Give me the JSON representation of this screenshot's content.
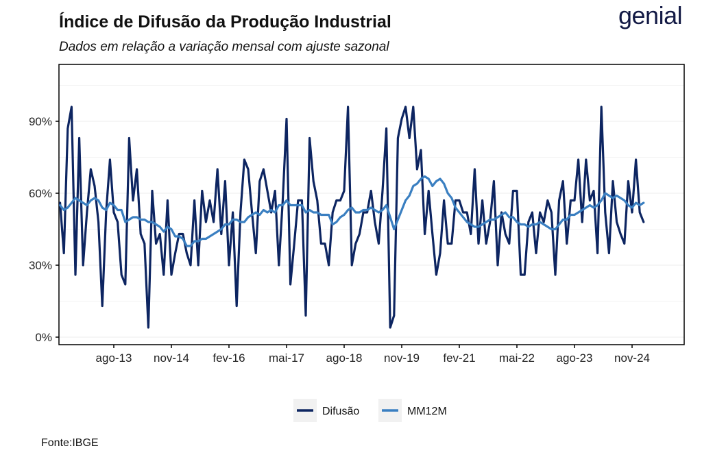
{
  "header": {
    "title": "Índice de Difusão da Produção Industrial",
    "subtitle": "Dados em relação a variação mensal com ajuste sazonal",
    "brand": "genial"
  },
  "footer": {
    "source": "Fonte:IBGE"
  },
  "colors": {
    "difusao": "#0d2561",
    "mm12m": "#3a7fc1",
    "axis": "#000000",
    "grid": "#ececec"
  },
  "chart_data": {
    "type": "line",
    "title": "Índice de Difusão da Produção Industrial",
    "subtitle": "Dados em relação a variação mensal com ajuste sazonal",
    "xlabel": "",
    "ylabel": "",
    "ylim": [
      0,
      1.1
    ],
    "xlim": [
      "2012-03",
      "2025-11"
    ],
    "grid": true,
    "legend_position": "bottom",
    "x_ticks": [
      {
        "date": "2013-08",
        "label": "ago-13"
      },
      {
        "date": "2014-11",
        "label": "nov-14"
      },
      {
        "date": "2016-02",
        "label": "fev-16"
      },
      {
        "date": "2017-05",
        "label": "mai-17"
      },
      {
        "date": "2018-08",
        "label": "ago-18"
      },
      {
        "date": "2019-11",
        "label": "nov-19"
      },
      {
        "date": "2021-02",
        "label": "fev-21"
      },
      {
        "date": "2022-05",
        "label": "mai-22"
      },
      {
        "date": "2023-08",
        "label": "ago-23"
      },
      {
        "date": "2024-11",
        "label": "nov-24"
      }
    ],
    "y_ticks": [
      {
        "value": 0,
        "label": "0%"
      },
      {
        "value": 0.3,
        "label": "30%"
      },
      {
        "value": 0.6,
        "label": "60%"
      },
      {
        "value": 0.9,
        "label": "90%"
      }
    ],
    "series": [
      {
        "name": "Difusão",
        "start": "2012-06",
        "values": [
          0.56,
          0.35,
          0.87,
          0.96,
          0.26,
          0.83,
          0.3,
          0.52,
          0.7,
          0.63,
          0.48,
          0.13,
          0.52,
          0.74,
          0.52,
          0.48,
          0.26,
          0.22,
          0.83,
          0.57,
          0.7,
          0.43,
          0.39,
          0.04,
          0.61,
          0.39,
          0.43,
          0.26,
          0.57,
          0.26,
          0.35,
          0.43,
          0.43,
          0.35,
          0.3,
          0.57,
          0.3,
          0.61,
          0.48,
          0.57,
          0.48,
          0.7,
          0.43,
          0.65,
          0.3,
          0.52,
          0.13,
          0.52,
          0.74,
          0.7,
          0.52,
          0.35,
          0.65,
          0.7,
          0.61,
          0.52,
          0.61,
          0.3,
          0.57,
          0.91,
          0.22,
          0.39,
          0.57,
          0.57,
          0.09,
          0.83,
          0.65,
          0.57,
          0.39,
          0.39,
          0.3,
          0.52,
          0.57,
          0.57,
          0.61,
          0.96,
          0.3,
          0.39,
          0.43,
          0.52,
          0.52,
          0.61,
          0.48,
          0.39,
          0.61,
          0.87,
          0.04,
          0.09,
          0.83,
          0.91,
          0.96,
          0.83,
          0.96,
          0.7,
          0.78,
          0.43,
          0.61,
          0.43,
          0.26,
          0.35,
          0.57,
          0.39,
          0.39,
          0.57,
          0.57,
          0.52,
          0.52,
          0.43,
          0.7,
          0.39,
          0.57,
          0.39,
          0.48,
          0.65,
          0.3,
          0.52,
          0.43,
          0.39,
          0.61,
          0.61,
          0.26,
          0.26,
          0.48,
          0.52,
          0.35,
          0.52,
          0.48,
          0.57,
          0.52,
          0.26,
          0.57,
          0.65,
          0.39,
          0.57,
          0.57,
          0.74,
          0.48,
          0.74,
          0.57,
          0.61,
          0.35,
          0.96,
          0.52,
          0.35,
          0.65,
          0.48,
          0.43,
          0.39,
          0.65,
          0.52,
          0.74,
          0.52,
          0.48
        ]
      },
      {
        "name": "MM12M",
        "start": "2012-06",
        "values": [
          0.55,
          0.53,
          0.54,
          0.56,
          0.58,
          0.57,
          0.56,
          0.55,
          0.57,
          0.58,
          0.57,
          0.54,
          0.53,
          0.56,
          0.55,
          0.53,
          0.53,
          0.48,
          0.49,
          0.5,
          0.5,
          0.49,
          0.49,
          0.48,
          0.48,
          0.47,
          0.46,
          0.44,
          0.46,
          0.45,
          0.42,
          0.42,
          0.41,
          0.38,
          0.38,
          0.4,
          0.4,
          0.41,
          0.41,
          0.42,
          0.43,
          0.44,
          0.45,
          0.47,
          0.47,
          0.49,
          0.49,
          0.48,
          0.48,
          0.5,
          0.51,
          0.52,
          0.51,
          0.53,
          0.52,
          0.53,
          0.52,
          0.55,
          0.55,
          0.57,
          0.55,
          0.55,
          0.55,
          0.55,
          0.52,
          0.53,
          0.52,
          0.52,
          0.51,
          0.51,
          0.51,
          0.47,
          0.48,
          0.5,
          0.51,
          0.53,
          0.54,
          0.52,
          0.52,
          0.53,
          0.53,
          0.54,
          0.53,
          0.52,
          0.53,
          0.55,
          0.5,
          0.45,
          0.49,
          0.53,
          0.57,
          0.59,
          0.63,
          0.64,
          0.66,
          0.67,
          0.66,
          0.63,
          0.65,
          0.66,
          0.64,
          0.6,
          0.58,
          0.54,
          0.52,
          0.5,
          0.48,
          0.47,
          0.46,
          0.46,
          0.47,
          0.48,
          0.49,
          0.49,
          0.5,
          0.51,
          0.52,
          0.5,
          0.5,
          0.48,
          0.47,
          0.47,
          0.46,
          0.47,
          0.47,
          0.48,
          0.47,
          0.46,
          0.45,
          0.45,
          0.47,
          0.49,
          0.49,
          0.51,
          0.51,
          0.52,
          0.53,
          0.54,
          0.55,
          0.54,
          0.55,
          0.57,
          0.6,
          0.59,
          0.58,
          0.59,
          0.58,
          0.57,
          0.55,
          0.54,
          0.56,
          0.55,
          0.56
        ]
      }
    ]
  }
}
